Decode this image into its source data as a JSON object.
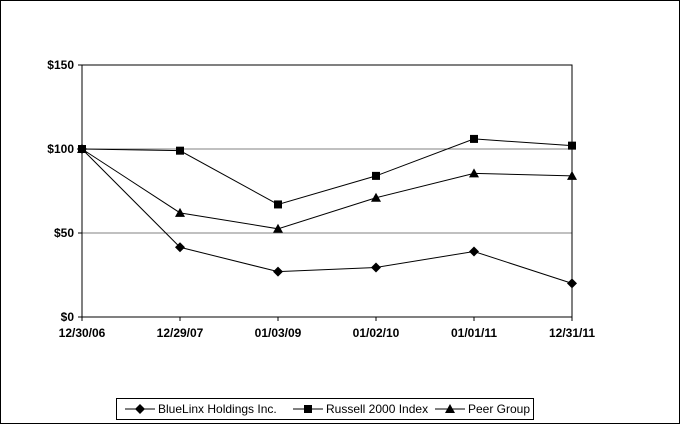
{
  "chart_data": {
    "type": "line",
    "x": [
      "12/30/06",
      "12/29/07",
      "01/03/09",
      "01/02/10",
      "01/01/11",
      "12/31/11"
    ],
    "y_ticks": [
      "$0",
      "$50",
      "$100",
      "$150"
    ],
    "ylim": [
      0,
      150
    ],
    "grid": "horizontal",
    "legend_position": "bottom",
    "series": [
      {
        "name": "BlueLinx Holdings Inc.",
        "marker": "diamond",
        "values": [
          100,
          41.5,
          27,
          29.5,
          39,
          20
        ]
      },
      {
        "name": "Russell 2000 Index",
        "marker": "square",
        "values": [
          100,
          99,
          67,
          84,
          106,
          102
        ]
      },
      {
        "name": "Peer Group",
        "marker": "triangle",
        "values": [
          100,
          62,
          52.5,
          71,
          85.5,
          84
        ]
      }
    ],
    "colors": {
      "line": "#000000",
      "grid": "#808080",
      "frame": "#000000"
    }
  }
}
